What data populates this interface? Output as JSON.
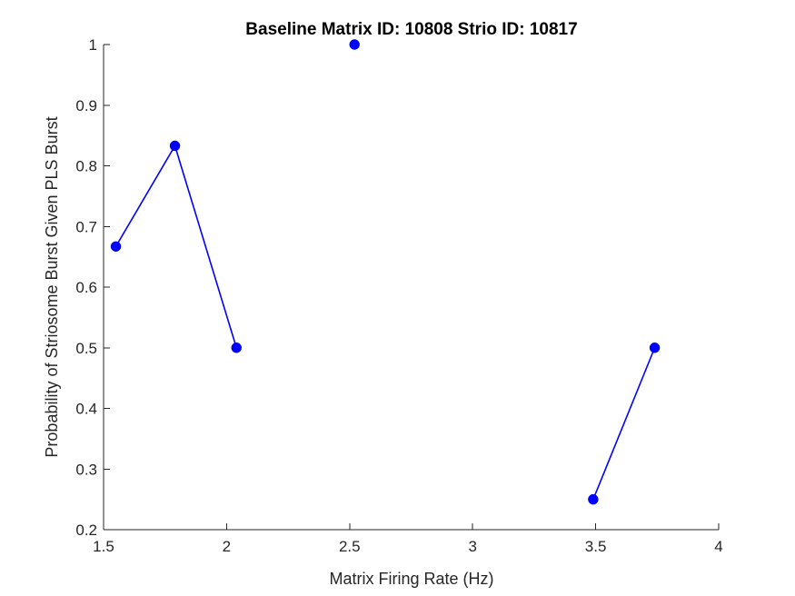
{
  "colors": {
    "series": "#0000ff",
    "axis": "#262626",
    "background": "#ffffff"
  },
  "chart_data": {
    "type": "line",
    "title": "Baseline Matrix ID: 10808 Strio ID: 10817",
    "xlabel": "Matrix Firing Rate (Hz)",
    "ylabel": "Probability of Striosome Burst Given PLS Burst",
    "xlim": [
      1.5,
      4
    ],
    "ylim": [
      0.2,
      1
    ],
    "xticks": [
      1.5,
      2,
      2.5,
      3,
      3.5,
      4
    ],
    "xtick_labels": [
      "1.5",
      "2",
      "2.5",
      "3",
      "3.5",
      "4"
    ],
    "yticks": [
      0.2,
      0.3,
      0.4,
      0.5,
      0.6,
      0.7,
      0.8,
      0.9,
      1
    ],
    "ytick_labels": [
      "0.2",
      "0.3",
      "0.4",
      "0.5",
      "0.6",
      "0.7",
      "0.8",
      "0.9",
      "1"
    ],
    "grid": false,
    "marker": "filled-circle",
    "segments": [
      {
        "x": [
          1.55,
          1.79,
          2.04
        ],
        "y": [
          0.667,
          0.833,
          0.5
        ]
      },
      {
        "x": [
          2.52
        ],
        "y": [
          1.0
        ]
      },
      {
        "x": [
          3.49,
          3.74
        ],
        "y": [
          0.25,
          0.5
        ]
      }
    ]
  }
}
